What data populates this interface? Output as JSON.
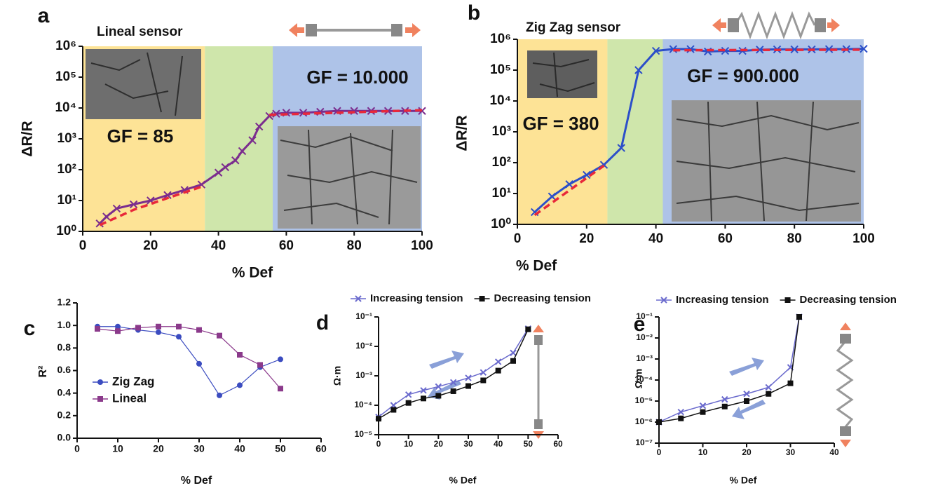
{
  "chart_data": [
    {
      "type": "line",
      "panel_label": "a",
      "title": "Lineal sensor",
      "y_label": "ΔR/R",
      "x_label": "% Def",
      "annotations": [
        "GF = 85",
        "GF = 10.000"
      ],
      "yscale": "log",
      "xlim": [
        0,
        100
      ],
      "xticks": [
        0,
        20,
        40,
        60,
        80,
        100
      ],
      "ylim": [
        1,
        1000000
      ],
      "yticks": [
        {
          "value": 1,
          "label": "10⁰"
        },
        {
          "value": 10,
          "label": "10¹"
        },
        {
          "value": 100,
          "label": "10²"
        },
        {
          "value": 1000,
          "label": "10³"
        },
        {
          "value": 10000,
          "label": "10⁴"
        },
        {
          "value": 100000,
          "label": "10⁵"
        },
        {
          "value": 1000000,
          "label": "10⁶"
        }
      ],
      "regions": [
        {
          "from": 0,
          "to": 36,
          "color": "#fde396"
        },
        {
          "from": 36,
          "to": 56,
          "color": "#cfe6ab"
        },
        {
          "from": 56,
          "to": 100,
          "color": "#aec3e8"
        }
      ],
      "series": [
        {
          "color": "#7b2d8e",
          "marker": "x",
          "x": [
            5,
            7,
            10,
            15,
            20,
            25,
            30,
            35,
            40,
            42,
            45,
            47,
            50,
            52,
            55,
            57,
            60,
            65,
            70,
            75,
            80,
            85,
            90,
            95,
            100
          ],
          "values": [
            1.8,
            3,
            5.5,
            7.5,
            10,
            15,
            22,
            33,
            80,
            120,
            200,
            400,
            900,
            2500,
            5500,
            6500,
            7000,
            7000,
            7500,
            8000,
            8000,
            8000,
            8000,
            8000,
            8000
          ]
        },
        {
          "color": "#e8283a",
          "dash": true,
          "x": [
            5,
            15,
            25,
            35,
            45,
            55,
            100
          ],
          "values": [
            1.6,
            5,
            12,
            28,
            null,
            6000,
            8500
          ]
        }
      ]
    },
    {
      "type": "line",
      "panel_label": "b",
      "title": "Zig Zag sensor",
      "y_label": "ΔR/R",
      "x_label": "% Def",
      "annotations": [
        "GF = 380",
        "GF = 900.000"
      ],
      "yscale": "log",
      "xlim": [
        0,
        100
      ],
      "xticks": [
        0,
        20,
        40,
        60,
        80,
        100
      ],
      "ylim": [
        1,
        1000000
      ],
      "yticks": [
        {
          "value": 1,
          "label": "10⁰"
        },
        {
          "value": 10,
          "label": "10¹"
        },
        {
          "value": 100,
          "label": "10²"
        },
        {
          "value": 1000,
          "label": "10³"
        },
        {
          "value": 10000,
          "label": "10⁴"
        },
        {
          "value": 100000,
          "label": "10⁵"
        },
        {
          "value": 1000000,
          "label": "10⁶"
        }
      ],
      "regions": [
        {
          "from": 0,
          "to": 26,
          "color": "#fde396"
        },
        {
          "from": 26,
          "to": 42,
          "color": "#cfe6ab"
        },
        {
          "from": 42,
          "to": 100,
          "color": "#aec3e8"
        }
      ],
      "series": [
        {
          "color": "#2c4fc9",
          "marker": "x",
          "x": [
            5,
            10,
            15,
            20,
            25,
            30,
            35,
            40,
            45,
            50,
            55,
            60,
            65,
            70,
            75,
            80,
            85,
            90,
            95,
            100
          ],
          "values": [
            2.5,
            8,
            20,
            40,
            85,
            300,
            100000,
            420000,
            480000,
            480000,
            400000,
            420000,
            420000,
            460000,
            470000,
            470000,
            470000,
            480000,
            480000,
            490000
          ]
        },
        {
          "color": "#e8283a",
          "dash": true,
          "x": [
            5,
            25,
            35,
            45,
            100
          ],
          "values": [
            2,
            80,
            null,
            440000,
            460000
          ]
        }
      ]
    },
    {
      "type": "line",
      "panel_label": "c",
      "y_label": "R²",
      "x_label": "% Def",
      "legend": "lower left",
      "xlim": [
        0,
        60
      ],
      "xticks": [
        0,
        10,
        20,
        30,
        40,
        50,
        60
      ],
      "ylim": [
        0,
        1.2
      ],
      "yticks": [
        {
          "value": 0,
          "label": "0.0"
        },
        0.2,
        0.4,
        0.6,
        0.8,
        {
          "value": 1,
          "label": "1.0"
        },
        1.2
      ],
      "series": [
        {
          "name": "Zig Zag",
          "color": "#3b4cc0",
          "marker": "circle",
          "x": [
            5,
            10,
            15,
            20,
            25,
            30,
            35,
            40,
            45,
            50
          ],
          "values": [
            0.99,
            0.99,
            0.96,
            0.94,
            0.9,
            0.66,
            0.38,
            0.47,
            0.63,
            0.7
          ]
        },
        {
          "name": "Lineal",
          "color": "#8b3a8b",
          "marker": "square",
          "x": [
            5,
            10,
            15,
            20,
            25,
            30,
            35,
            40,
            45,
            50
          ],
          "values": [
            0.97,
            0.95,
            0.98,
            0.99,
            0.99,
            0.96,
            0.91,
            0.74,
            0.65,
            0.44
          ]
        }
      ]
    },
    {
      "type": "line",
      "panel_label": "d",
      "y_label": "Ω·m",
      "x_label": "% Def",
      "legend": "top",
      "yscale": "log",
      "xlim": [
        0,
        60
      ],
      "xticks": [
        0,
        10,
        20,
        30,
        40,
        50,
        60
      ],
      "ylim": [
        1e-05,
        0.1
      ],
      "yticks": [
        {
          "value": 1e-05,
          "label": "10⁻⁵"
        },
        {
          "value": 0.0001,
          "label": "10⁻⁴"
        },
        {
          "value": 0.001,
          "label": "10⁻³"
        },
        {
          "value": 0.01,
          "label": "10⁻²"
        },
        {
          "value": 0.1,
          "label": "10⁻¹"
        }
      ],
      "series": [
        {
          "name": "Increasing tension",
          "color": "#6a6acd",
          "marker": "x",
          "x": [
            0,
            5,
            10,
            15,
            20,
            25,
            30,
            35,
            40,
            45,
            50
          ],
          "values": [
            4e-05,
            0.0001,
            0.00023,
            0.00032,
            0.00043,
            0.0006,
            0.00085,
            0.0013,
            0.003,
            0.006,
            0.04
          ]
        },
        {
          "name": "Decreasing tension",
          "color": "#111111",
          "marker": "square",
          "x": [
            0,
            5,
            10,
            15,
            20,
            25,
            30,
            35,
            40,
            45,
            50
          ],
          "values": [
            3.5e-05,
            7e-05,
            0.00012,
            0.00017,
            0.00021,
            0.0003,
            0.00045,
            0.0007,
            0.0015,
            0.0032,
            0.038
          ]
        }
      ]
    },
    {
      "type": "line",
      "panel_label": "e",
      "y_label": "Ω·m",
      "x_label": "% Def",
      "legend": "top",
      "yscale": "log",
      "xlim": [
        0,
        40
      ],
      "xticks": [
        0,
        10,
        20,
        30,
        40
      ],
      "ylim": [
        1e-07,
        0.1
      ],
      "yticks": [
        {
          "value": 1e-07,
          "label": "10⁻⁷"
        },
        {
          "value": 1e-06,
          "label": "10⁻⁶"
        },
        {
          "value": 1e-05,
          "label": "10⁻⁵"
        },
        {
          "value": 0.0001,
          "label": "10⁻⁴"
        },
        {
          "value": 0.001,
          "label": "10⁻³"
        },
        {
          "value": 0.01,
          "label": "10⁻²"
        },
        {
          "value": 0.1,
          "label": "10⁻¹"
        }
      ],
      "series": [
        {
          "name": "Increasing tension",
          "color": "#6a6acd",
          "marker": "x",
          "x": [
            0,
            5,
            10,
            15,
            20,
            25,
            30,
            32
          ],
          "values": [
            1e-06,
            3e-06,
            6e-06,
            1.2e-05,
            2.2e-05,
            4.5e-05,
            0.0004,
            0.1
          ]
        },
        {
          "name": "Decreasing tension",
          "color": "#111111",
          "marker": "square",
          "x": [
            0,
            5,
            10,
            15,
            20,
            25,
            30,
            32
          ],
          "values": [
            1e-06,
            1.5e-06,
            3e-06,
            5.5e-06,
            1e-05,
            2.2e-05,
            7e-05,
            0.1
          ]
        }
      ]
    }
  ]
}
